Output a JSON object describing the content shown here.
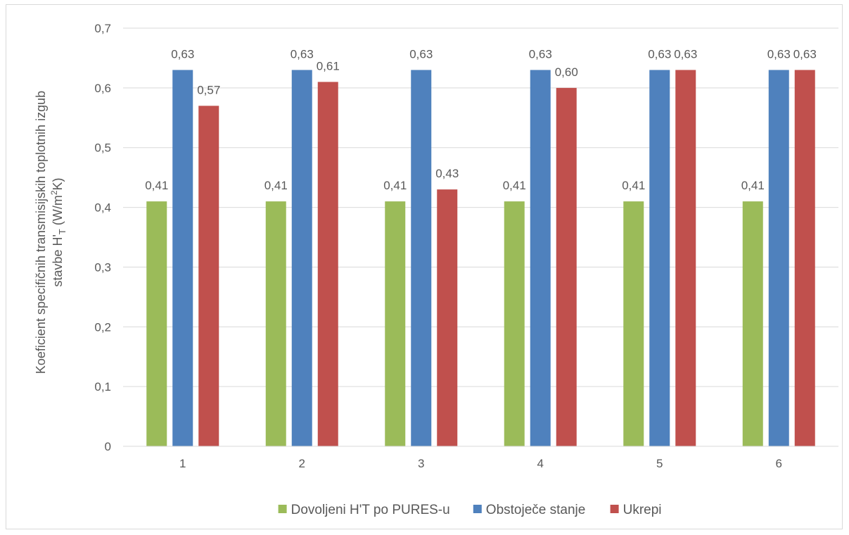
{
  "chart_data": {
    "type": "bar",
    "title": "",
    "xlabel": "",
    "ylabel": {
      "line1": "Koeficient specifičnih transmisijskih toplotnih izgub",
      "line2_prefix": "stavbe H'",
      "line2_sub": "T",
      "line2_mid": " (W/m",
      "line2_sup": "2",
      "line2_suffix": "K)"
    },
    "ylim": [
      0,
      0.7
    ],
    "yticks": [
      0,
      0.1,
      0.2,
      0.3,
      0.4,
      0.5,
      0.6,
      0.7
    ],
    "ytick_labels": [
      "0",
      "0,1",
      "0,2",
      "0,3",
      "0,4",
      "0,5",
      "0,6",
      "0,7"
    ],
    "categories": [
      "1",
      "2",
      "3",
      "4",
      "5",
      "6"
    ],
    "grid": true,
    "legend_position": "bottom",
    "series": [
      {
        "name": "Dovoljeni H'T po PURES-u",
        "color": "#9bbb59",
        "values": [
          0.41,
          0.41,
          0.41,
          0.41,
          0.41,
          0.41
        ],
        "labels": [
          "0,41",
          "0,41",
          "0,41",
          "0,41",
          "0,41",
          "0,41"
        ]
      },
      {
        "name": "Obstoječe stanje",
        "color": "#4f81bd",
        "values": [
          0.63,
          0.63,
          0.63,
          0.63,
          0.63,
          0.63
        ],
        "labels": [
          "0,63",
          "0,63",
          "0,63",
          "0,63",
          "0,63",
          "0,63"
        ]
      },
      {
        "name": "Ukrepi",
        "color": "#c0504d",
        "values": [
          0.57,
          0.61,
          0.43,
          0.6,
          0.63,
          0.63
        ],
        "labels": [
          "0,57",
          "0,61",
          "0,43",
          "0,60",
          "0,63",
          "0,63"
        ]
      }
    ]
  }
}
